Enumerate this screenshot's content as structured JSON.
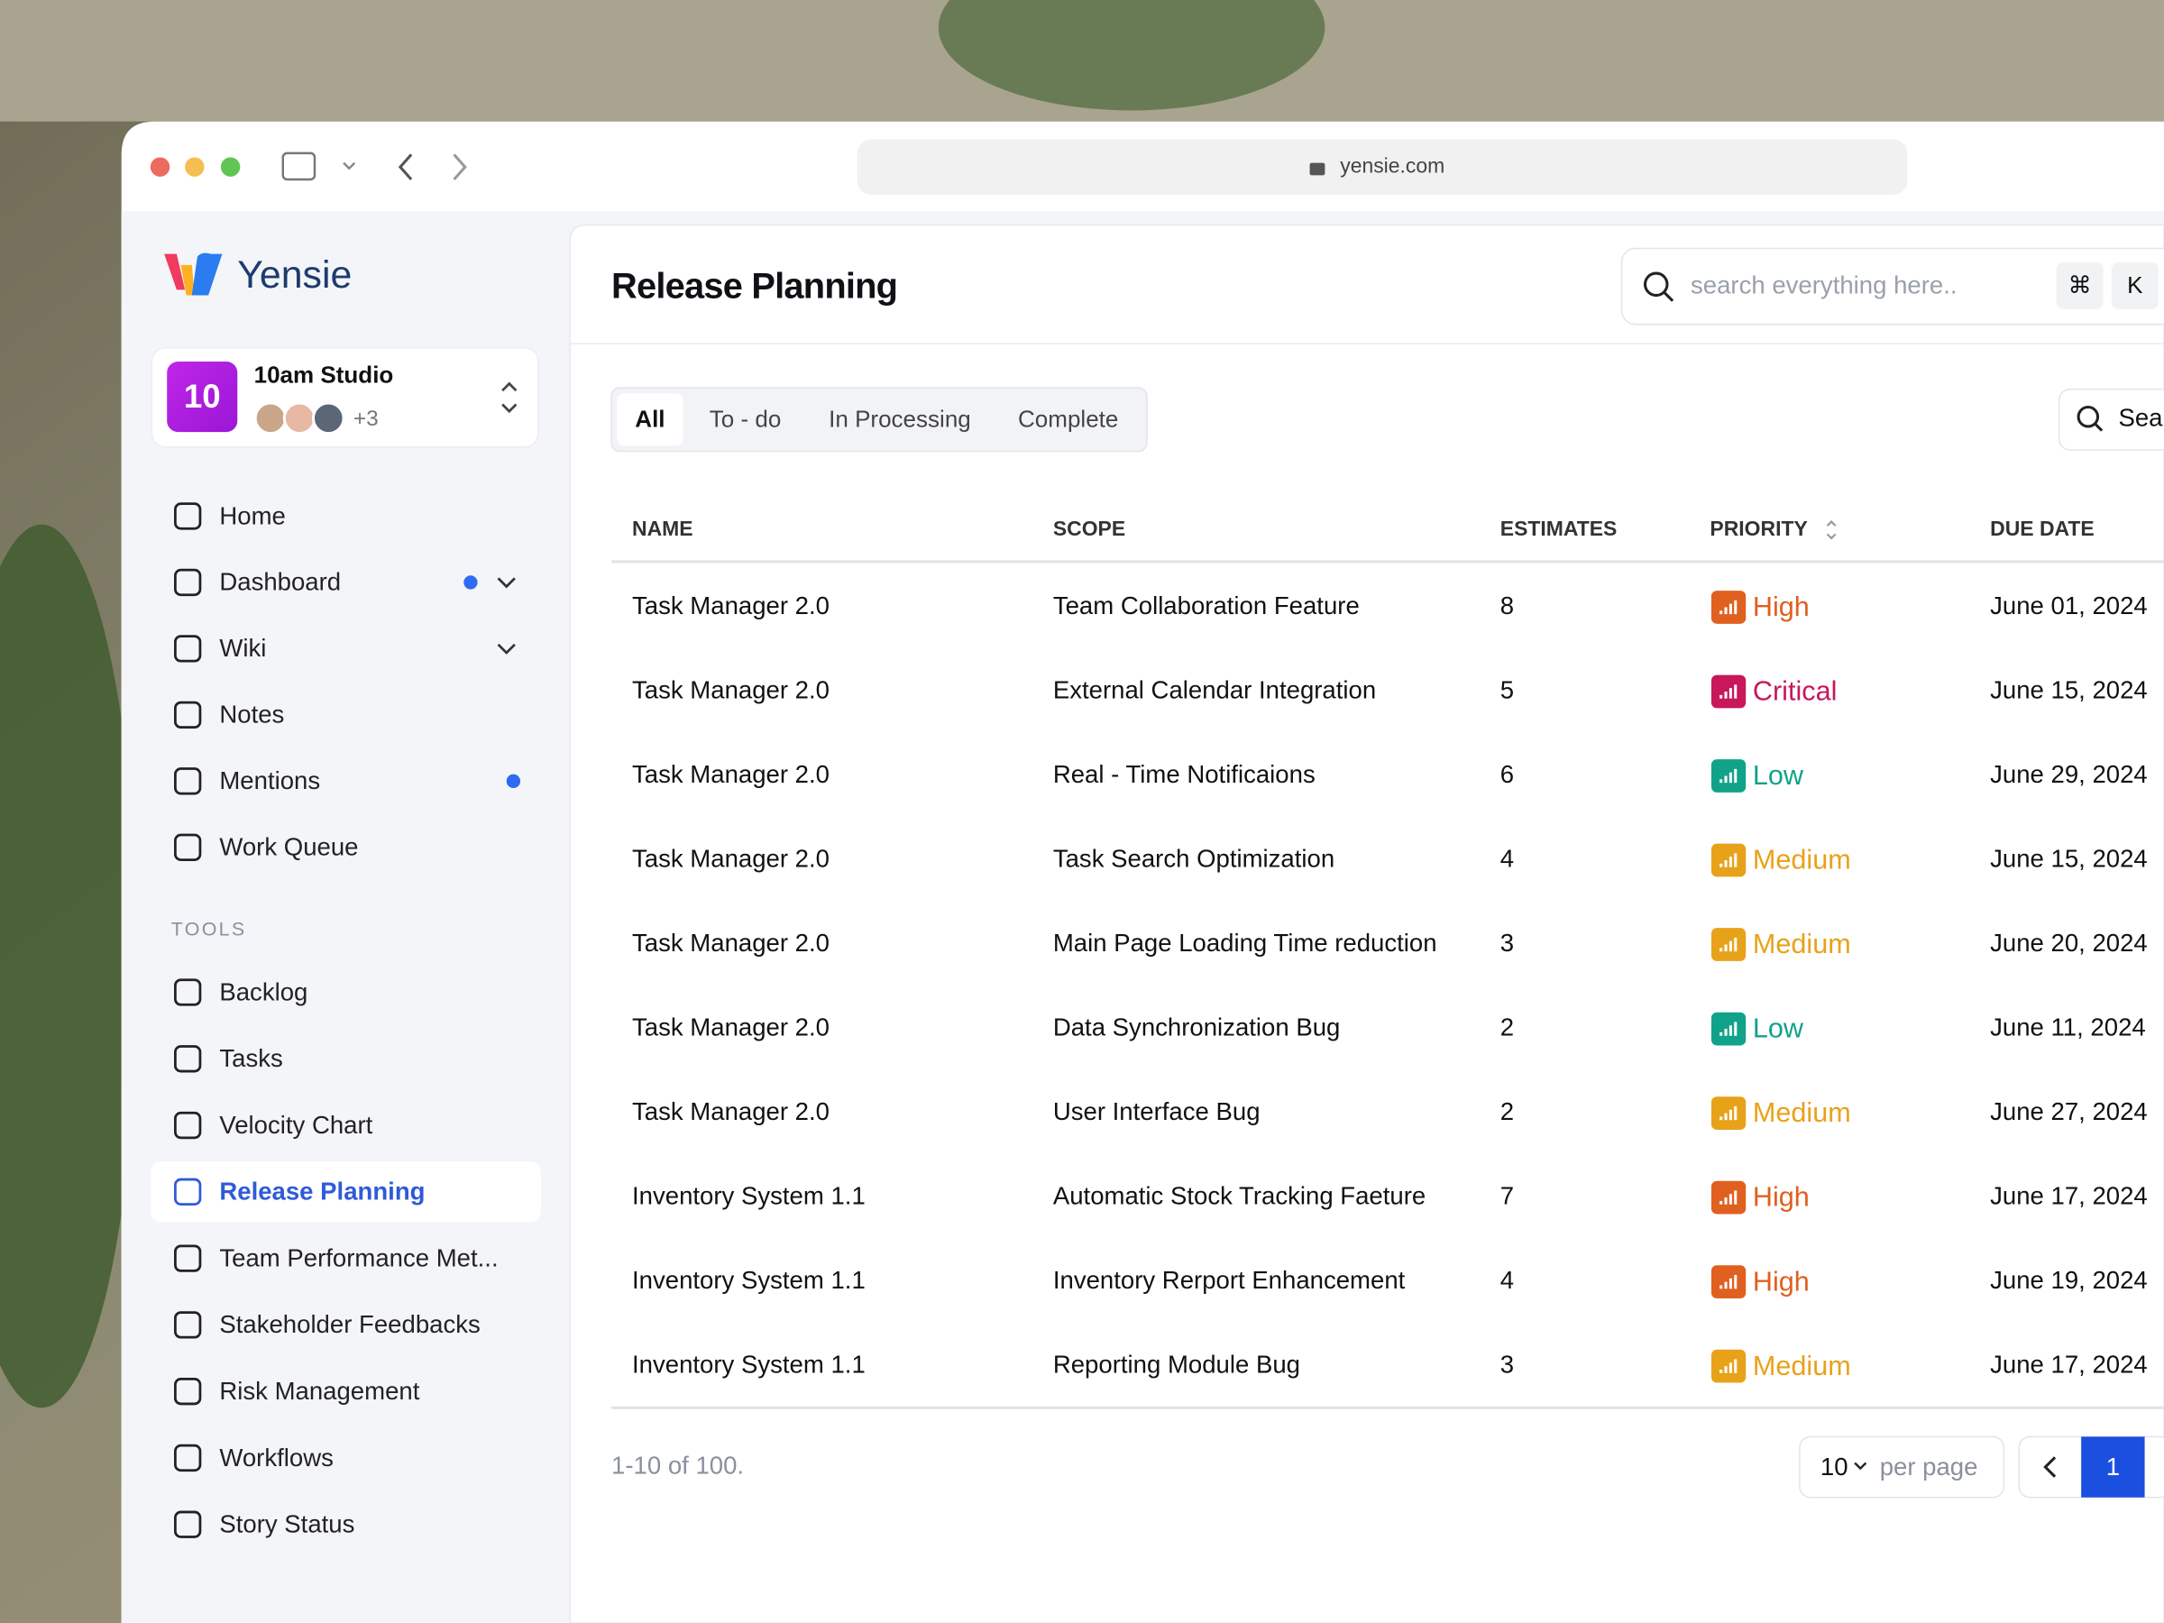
{
  "browser": {
    "url": "yensie.com"
  },
  "sidebar": {
    "brand": "Yensie",
    "workspace": {
      "initials": "10",
      "name": "10am Studio",
      "extra": "+3"
    },
    "nav": [
      {
        "label": "Home"
      },
      {
        "label": "Dashboard",
        "dot": true,
        "expand": true
      },
      {
        "label": "Wiki",
        "expand": true
      },
      {
        "label": "Notes"
      },
      {
        "label": "Mentions",
        "dot": true
      },
      {
        "label": "Work Queue"
      }
    ],
    "tools_label": "TOOLS",
    "tools": [
      {
        "label": "Backlog"
      },
      {
        "label": "Tasks"
      },
      {
        "label": "Velocity Chart"
      },
      {
        "label": "Release Planning",
        "active": true
      },
      {
        "label": "Team Performance Met..."
      },
      {
        "label": "Stakeholder Feedbacks"
      },
      {
        "label": "Risk Management"
      },
      {
        "label": "Workflows"
      },
      {
        "label": "Story Status"
      }
    ]
  },
  "header": {
    "title": "Release Planning",
    "search_placeholder": "search everything here..",
    "shortcut": [
      "⌘",
      "K"
    ]
  },
  "tabs": [
    {
      "label": "All",
      "active": true
    },
    {
      "label": "To - do"
    },
    {
      "label": "In Processing"
    },
    {
      "label": "Complete"
    }
  ],
  "table_search": "Sea",
  "table": {
    "columns": [
      "NAME",
      "SCOPE",
      "ESTIMATES",
      "PRIORITY",
      "DUE DATE"
    ],
    "rows": [
      {
        "name": "Task Manager 2.0",
        "scope": "Team Collaboration Feature",
        "estimate": "8",
        "priority": "High",
        "color": "#e0601f",
        "due": "June 01, 2024"
      },
      {
        "name": "Task Manager 2.0",
        "scope": "External Calendar Integration",
        "estimate": "5",
        "priority": "Critical",
        "color": "#c8175a",
        "due": "June 15, 2024"
      },
      {
        "name": "Task Manager 2.0",
        "scope": "Real - Time Notificaions",
        "estimate": "6",
        "priority": "Low",
        "color": "#10a38a",
        "due": "June 29, 2024"
      },
      {
        "name": "Task Manager 2.0",
        "scope": "Task Search Optimization",
        "estimate": "4",
        "priority": "Medium",
        "color": "#e8a21a",
        "due": "June 15, 2024"
      },
      {
        "name": "Task Manager 2.0",
        "scope": "Main Page Loading Time reduction",
        "estimate": "3",
        "priority": "Medium",
        "color": "#e8a21a",
        "due": "June 20, 2024"
      },
      {
        "name": "Task Manager 2.0",
        "scope": "Data Synchronization Bug",
        "estimate": "2",
        "priority": "Low",
        "color": "#10a38a",
        "due": "June 11, 2024"
      },
      {
        "name": "Task Manager 2.0",
        "scope": "User Interface Bug",
        "estimate": "2",
        "priority": "Medium",
        "color": "#e8a21a",
        "due": "June 27, 2024"
      },
      {
        "name": "Inventory System 1.1",
        "scope": "Automatic Stock Tracking Faeture",
        "estimate": "7",
        "priority": "High",
        "color": "#e0601f",
        "due": "June 17, 2024"
      },
      {
        "name": "Inventory System 1.1",
        "scope": "Inventory Rerport Enhancement",
        "estimate": "4",
        "priority": "High",
        "color": "#e0601f",
        "due": "June 19, 2024"
      },
      {
        "name": "Inventory System 1.1",
        "scope": "Reporting Module Bug",
        "estimate": "3",
        "priority": "Medium",
        "color": "#e8a21a",
        "due": "June 17, 2024"
      }
    ]
  },
  "footer": {
    "range": "1-10 of 100.",
    "per_page_value": "10",
    "per_page_label": "per page",
    "page": "1"
  }
}
